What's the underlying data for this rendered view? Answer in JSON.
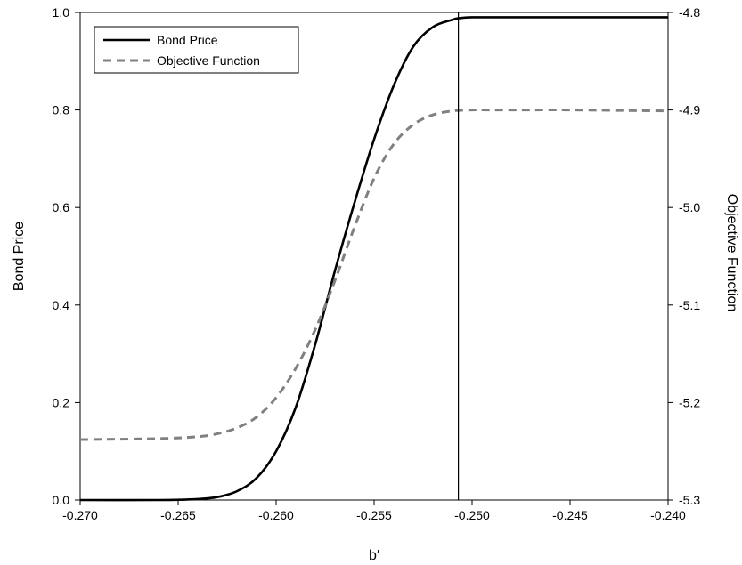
{
  "chart_data": {
    "type": "line",
    "xlabel": "b′",
    "ylabel": "Bond Price",
    "y2label": "Objective Function",
    "xlim": [
      -0.27,
      -0.24
    ],
    "ylim": [
      0.0,
      1.0
    ],
    "y2lim": [
      -5.3,
      -4.8
    ],
    "x_ticks": [
      "-0.270",
      "-0.265",
      "-0.260",
      "-0.255",
      "-0.250",
      "-0.245",
      "-0.240"
    ],
    "y_ticks": [
      "0.0",
      "0.2",
      "0.4",
      "0.6",
      "0.8",
      "1.0"
    ],
    "y2_ticks": [
      "-5.3",
      "-5.2",
      "-5.1",
      "-5.0",
      "-4.9",
      "-4.8"
    ],
    "grid": false,
    "legend_position": "top-left",
    "vertical_line_x": -0.2507,
    "series": [
      {
        "name": "Bond Price",
        "axis": "left",
        "color": "#000000",
        "style": "solid",
        "x": [
          -0.27,
          -0.266,
          -0.264,
          -0.263,
          -0.262,
          -0.261,
          -0.26,
          -0.259,
          -0.258,
          -0.257,
          -0.256,
          -0.255,
          -0.254,
          -0.253,
          -0.252,
          -0.251,
          -0.2507,
          -0.25,
          -0.249,
          -0.245,
          -0.24
        ],
        "y": [
          0.0,
          0.0,
          0.002,
          0.006,
          0.018,
          0.045,
          0.1,
          0.19,
          0.32,
          0.47,
          0.61,
          0.74,
          0.85,
          0.93,
          0.97,
          0.985,
          0.988,
          0.99,
          0.99,
          0.99,
          0.99
        ]
      },
      {
        "name": "Objective Function",
        "axis": "right",
        "color": "#808080",
        "style": "dashed",
        "x": [
          -0.27,
          -0.266,
          -0.264,
          -0.263,
          -0.262,
          -0.261,
          -0.26,
          -0.259,
          -0.258,
          -0.257,
          -0.256,
          -0.255,
          -0.254,
          -0.253,
          -0.252,
          -0.251,
          -0.25,
          -0.249,
          -0.247,
          -0.245,
          -0.24
        ],
        "y": [
          -5.238,
          -5.237,
          -5.235,
          -5.232,
          -5.226,
          -5.215,
          -5.195,
          -5.165,
          -5.125,
          -5.075,
          -5.02,
          -4.97,
          -4.935,
          -4.915,
          -4.905,
          -4.901,
          -4.9,
          -4.9,
          -4.9,
          -4.9,
          -4.901
        ]
      }
    ]
  }
}
